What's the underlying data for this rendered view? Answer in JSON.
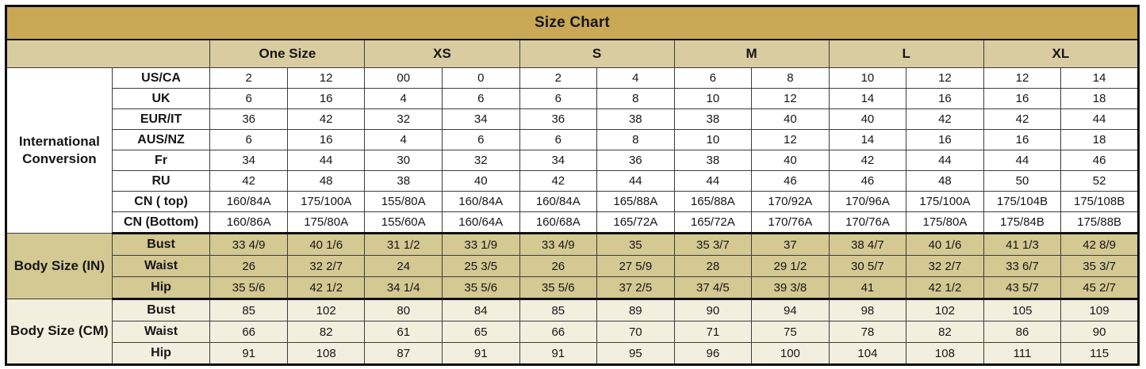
{
  "colors": {
    "title_bg": "#c9a856",
    "header_bg": "#d9cca0",
    "in_bg": "#d4c893",
    "cm_bg": "#f2efde"
  },
  "chart_data": {
    "type": "table",
    "title": "Size Chart",
    "column_groups": [
      "One Size",
      "XS",
      "S",
      "M",
      "L",
      "XL"
    ],
    "columns_per_group": 2,
    "sections": [
      {
        "group_label": "International Conversion",
        "rows": [
          {
            "label": "US/CA",
            "values": [
              "2",
              "12",
              "00",
              "0",
              "2",
              "4",
              "6",
              "8",
              "10",
              "12",
              "12",
              "14"
            ]
          },
          {
            "label": "UK",
            "values": [
              "6",
              "16",
              "4",
              "6",
              "6",
              "8",
              "10",
              "12",
              "14",
              "16",
              "16",
              "18"
            ]
          },
          {
            "label": "EUR/IT",
            "values": [
              "36",
              "42",
              "32",
              "34",
              "36",
              "38",
              "38",
              "40",
              "40",
              "42",
              "42",
              "44"
            ]
          },
          {
            "label": "AUS/NZ",
            "values": [
              "6",
              "16",
              "4",
              "6",
              "6",
              "8",
              "10",
              "12",
              "14",
              "16",
              "16",
              "18"
            ]
          },
          {
            "label": "Fr",
            "values": [
              "34",
              "44",
              "30",
              "32",
              "34",
              "36",
              "38",
              "40",
              "42",
              "44",
              "44",
              "46"
            ]
          },
          {
            "label": "RU",
            "values": [
              "42",
              "48",
              "38",
              "40",
              "42",
              "44",
              "44",
              "46",
              "46",
              "48",
              "50",
              "52"
            ]
          },
          {
            "label": "CN ( top)",
            "values": [
              "160/84A",
              "175/100A",
              "155/80A",
              "160/84A",
              "160/84A",
              "165/88A",
              "165/88A",
              "170/92A",
              "170/96A",
              "175/100A",
              "175/104B",
              "175/108B"
            ]
          },
          {
            "label": "CN (Bottom)",
            "values": [
              "160/86A",
              "175/80A",
              "155/60A",
              "160/64A",
              "160/68A",
              "165/72A",
              "165/72A",
              "170/76A",
              "170/76A",
              "175/80A",
              "175/84B",
              "175/88B"
            ]
          }
        ]
      },
      {
        "group_label": "Body Size (IN)",
        "rows": [
          {
            "label": "Bust",
            "values": [
              "33 4/9",
              "40 1/6",
              "31 1/2",
              "33 1/9",
              "33 4/9",
              "35",
              "35 3/7",
              "37",
              "38 4/7",
              "40 1/6",
              "41 1/3",
              "42 8/9"
            ]
          },
          {
            "label": "Waist",
            "values": [
              "26",
              "32 2/7",
              "24",
              "25 3/5",
              "26",
              "27 5/9",
              "28",
              "29 1/2",
              "30 5/7",
              "32 2/7",
              "33 6/7",
              "35 3/7"
            ]
          },
          {
            "label": "Hip",
            "values": [
              "35 5/6",
              "42 1/2",
              "34 1/4",
              "35 5/6",
              "35 5/6",
              "37 2/5",
              "37 4/5",
              "39 3/8",
              "41",
              "42 1/2",
              "43 5/7",
              "45 2/7"
            ]
          }
        ]
      },
      {
        "group_label": "Body Size (CM)",
        "rows": [
          {
            "label": "Bust",
            "values": [
              "85",
              "102",
              "80",
              "84",
              "85",
              "89",
              "90",
              "94",
              "98",
              "102",
              "105",
              "109"
            ]
          },
          {
            "label": "Waist",
            "values": [
              "66",
              "82",
              "61",
              "65",
              "66",
              "70",
              "71",
              "75",
              "78",
              "82",
              "86",
              "90"
            ]
          },
          {
            "label": "Hip",
            "values": [
              "91",
              "108",
              "87",
              "91",
              "91",
              "95",
              "96",
              "100",
              "104",
              "108",
              "111",
              "115"
            ]
          }
        ]
      }
    ]
  }
}
